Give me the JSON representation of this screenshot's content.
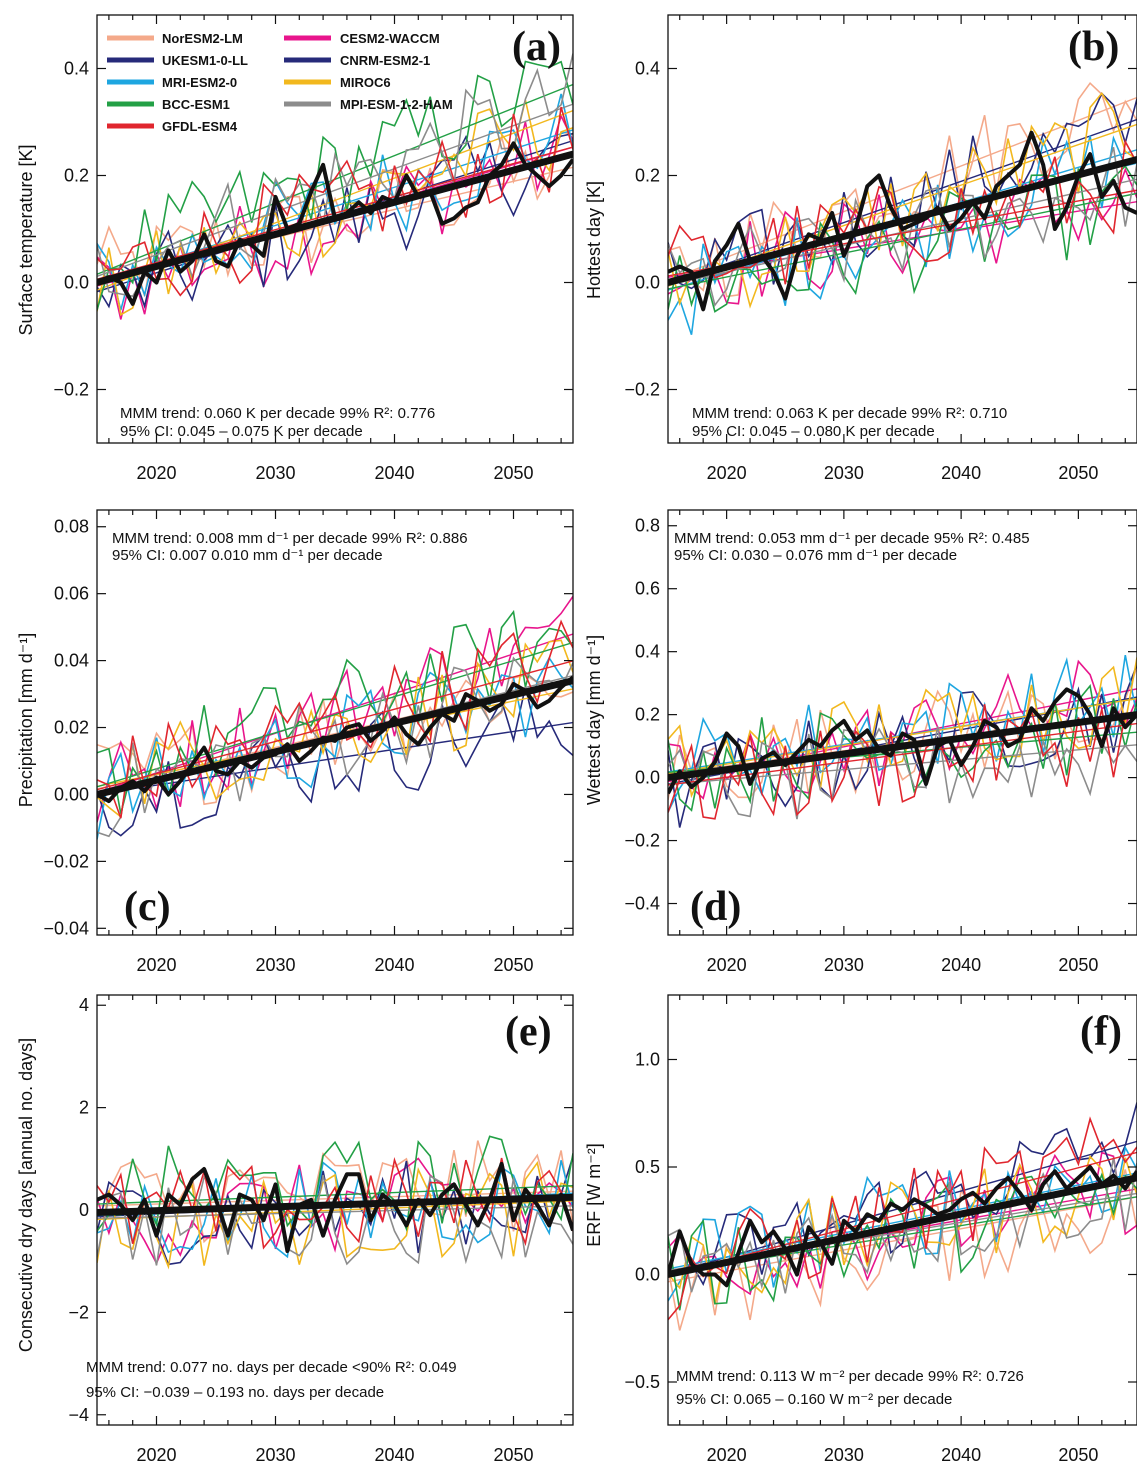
{
  "legend": {
    "entries": [
      {
        "name": "NorESM2-LM",
        "color": "#f4a98a"
      },
      {
        "name": "CESM2-WACCM",
        "color": "#e8158c"
      },
      {
        "name": "UKESM1-0-LL",
        "color": "#262a7a"
      },
      {
        "name": "CNRM-ESM2-1",
        "color": "#262a7a"
      },
      {
        "name": "MRI-ESM2-0",
        "color": "#1ea6e0"
      },
      {
        "name": "MIROC6",
        "color": "#f2b81e"
      },
      {
        "name": "BCC-ESM1",
        "color": "#23a046"
      },
      {
        "name": "MPI-ESM-1-2-HAM",
        "color": "#8c8c8c"
      },
      {
        "name": "GFDL-ESM4",
        "color": "#e0262e"
      }
    ]
  },
  "colors": {
    "mmm": "#111111",
    "models": [
      "#f4a98a",
      "#e8158c",
      "#262a7a",
      "#1ea6e0",
      "#f2b81e",
      "#23a046",
      "#8c8c8c",
      "#e0262e"
    ]
  },
  "chart_data": [
    {
      "type": "line",
      "panel": "(a)",
      "ylabel": "Surface temperature [K]",
      "xlim": [
        2015,
        2055
      ],
      "ylim": [
        -0.3,
        0.5
      ],
      "xticks": [
        "2020",
        "2030",
        "2040",
        "2050"
      ],
      "yticks": [
        "-0.2",
        "0.0",
        "0.2",
        "0.4"
      ],
      "ytick_values": [
        -0.2,
        0.0,
        0.2,
        0.4
      ],
      "mmm_trend": {
        "start": 0.0,
        "end": 0.24
      },
      "mmm_series": [
        0.0,
        0.01,
        0.0,
        -0.04,
        0.02,
        0.0,
        0.06,
        0.02,
        0.04,
        0.09,
        0.04,
        0.03,
        0.08,
        0.07,
        0.05,
        0.16,
        0.1,
        0.11,
        0.17,
        0.22,
        0.12,
        0.13,
        0.15,
        0.13,
        0.16,
        0.15,
        0.2,
        0.16,
        0.17,
        0.11,
        0.12,
        0.14,
        0.15,
        0.2,
        0.22,
        0.26,
        0.22,
        0.2,
        0.18,
        0.2,
        0.23
      ],
      "stats_line1": "MMM trend:  0.060 K per decade    99%   R²:  0.776",
      "stats_line2": "95% CI:         0.045  –  0.075 K per decade",
      "stats_position": "bottom"
    },
    {
      "type": "line",
      "panel": "(b)",
      "ylabel": "Hottest day [K]",
      "xlim": [
        2015,
        2055
      ],
      "ylim": [
        -0.3,
        0.5
      ],
      "xticks": [
        "2020",
        "2030",
        "2040",
        "2050"
      ],
      "yticks": [
        "-0.2",
        "0.0",
        "0.2",
        "0.4"
      ],
      "ytick_values": [
        -0.2,
        0.0,
        0.2,
        0.4
      ],
      "mmm_trend": {
        "start": 0.0,
        "end": 0.23
      },
      "mmm_series": [
        0.02,
        0.03,
        0.02,
        -0.05,
        0.04,
        0.07,
        0.11,
        0.04,
        0.05,
        0.02,
        -0.03,
        0.05,
        0.09,
        0.08,
        0.13,
        0.05,
        0.1,
        0.18,
        0.2,
        0.14,
        0.1,
        0.11,
        0.12,
        0.14,
        0.1,
        0.12,
        0.15,
        0.12,
        0.18,
        0.2,
        0.22,
        0.28,
        0.22,
        0.1,
        0.14,
        0.2,
        0.24,
        0.16,
        0.19,
        0.14,
        0.13
      ],
      "stats_line1": "MMM trend:  0.063 K per decade    99%   R²:  0.710",
      "stats_line2": "95% CI:         0.045  –  0.080 K per decade",
      "stats_position": "bottom"
    },
    {
      "type": "line",
      "panel": "(c)",
      "ylabel": "Precipitation [mm d⁻¹]",
      "xlim": [
        2015,
        2055
      ],
      "ylim": [
        -0.042,
        0.085
      ],
      "xticks": [
        "2020",
        "2030",
        "2040",
        "2050"
      ],
      "yticks": [
        "-0.04",
        "-0.02",
        "0.00",
        "0.02",
        "0.04",
        "0.06",
        "0.08"
      ],
      "ytick_values": [
        -0.04,
        -0.02,
        0.0,
        0.02,
        0.04,
        0.06,
        0.08
      ],
      "mmm_trend": {
        "start": 0.0,
        "end": 0.034
      },
      "mmm_series": [
        0.0,
        -0.002,
        0.002,
        0.004,
        0.001,
        0.005,
        0.0,
        0.004,
        0.009,
        0.014,
        0.007,
        0.006,
        0.01,
        0.008,
        0.011,
        0.012,
        0.015,
        0.01,
        0.013,
        0.017,
        0.016,
        0.02,
        0.021,
        0.016,
        0.019,
        0.023,
        0.018,
        0.015,
        0.02,
        0.024,
        0.022,
        0.03,
        0.028,
        0.025,
        0.027,
        0.033,
        0.031,
        0.026,
        0.028,
        0.032,
        0.035
      ],
      "stats_line1": "MMM trend:  0.008  mm d⁻¹ per decade  99%   R²:  0.886",
      "stats_line2": "95% CI:           0.007     0.010 mm d⁻¹ per decade",
      "stats_position": "top"
    },
    {
      "type": "line",
      "panel": "(d)",
      "ylabel": "Wettest day [mm d⁻¹]",
      "xlim": [
        2015,
        2055
      ],
      "ylim": [
        -0.5,
        0.85
      ],
      "xticks": [
        "2020",
        "2030",
        "2040",
        "2050"
      ],
      "yticks": [
        "-0.4",
        "-0.2",
        "0.0",
        "0.2",
        "0.4",
        "0.6",
        "0.8"
      ],
      "ytick_values": [
        -0.4,
        -0.2,
        0.0,
        0.2,
        0.4,
        0.6,
        0.8
      ],
      "mmm_trend": {
        "start": 0.0,
        "end": 0.2
      },
      "mmm_series": [
        -0.05,
        0.02,
        -0.03,
        0.0,
        0.05,
        0.14,
        0.1,
        -0.02,
        0.06,
        0.08,
        0.04,
        0.08,
        0.12,
        0.1,
        0.15,
        0.18,
        0.12,
        0.15,
        0.09,
        0.07,
        0.14,
        0.12,
        -0.02,
        0.1,
        0.12,
        0.04,
        0.1,
        0.18,
        0.16,
        0.1,
        0.12,
        0.22,
        0.18,
        0.24,
        0.28,
        0.26,
        0.2,
        0.1,
        0.22,
        0.16,
        0.2
      ],
      "stats_line1": "MMM trend:  0.053  mm d⁻¹ per decade  95%   R²:  0.485",
      "stats_line2": "95% CI:            0.030  –  0.076 mm d⁻¹ per decade",
      "stats_position": "top"
    },
    {
      "type": "line",
      "panel": "(e)",
      "ylabel": "Consecutive dry days [annual no. days]",
      "xlim": [
        2015,
        2055
      ],
      "ylim": [
        -4.2,
        4.2
      ],
      "xticks": [
        "2020",
        "2030",
        "2040",
        "2050"
      ],
      "yticks": [
        "-4",
        "-2",
        "0",
        "2",
        "4"
      ],
      "ytick_values": [
        -4,
        -2,
        0,
        2,
        4
      ],
      "mmm_trend": {
        "start": -0.05,
        "end": 0.25
      },
      "mmm_series": [
        0.2,
        0.3,
        0.1,
        -0.2,
        0.2,
        -0.5,
        0.3,
        0.1,
        0.6,
        0.8,
        0.2,
        -0.5,
        0.3,
        0.2,
        -0.2,
        0.5,
        -0.8,
        0.1,
        0.2,
        -0.5,
        0.2,
        0.7,
        0.7,
        -0.2,
        0.3,
        0.1,
        -0.3,
        0.2,
        -0.1,
        0.3,
        0.5,
        0.1,
        -0.3,
        0.2,
        0.9,
        -0.2,
        0.4,
        0.1,
        -0.3,
        0.3,
        -0.4
      ],
      "stats_line1": "MMM trend:  0.077  no. days per decade <90%    R²:  0.049",
      "stats_line2": "95% CI:       −0.039  –  0.193  no. days per decade",
      "stats_position": "bottom"
    },
    {
      "type": "line",
      "panel": "(f)",
      "ylabel": "ERF [W m⁻²]",
      "xlim": [
        2015,
        2055
      ],
      "ylim": [
        -0.7,
        1.3
      ],
      "xticks": [
        "2020",
        "2030",
        "2040",
        "2050"
      ],
      "yticks": [
        "-0.5",
        "0.0",
        "0.5",
        "1.0"
      ],
      "ytick_values": [
        -0.5,
        0.0,
        0.5,
        1.0
      ],
      "mmm_trend": {
        "start": 0.0,
        "end": 0.45
      },
      "mmm_series": [
        0.0,
        0.2,
        0.05,
        0.0,
        0.0,
        -0.05,
        0.1,
        0.25,
        0.15,
        0.2,
        0.12,
        0.0,
        0.22,
        0.15,
        0.05,
        0.25,
        0.2,
        0.28,
        0.25,
        0.33,
        0.3,
        0.35,
        0.32,
        0.28,
        0.3,
        0.35,
        0.38,
        0.33,
        0.4,
        0.45,
        0.38,
        0.3,
        0.42,
        0.48,
        0.4,
        0.45,
        0.5,
        0.42,
        0.46,
        0.4,
        0.48
      ],
      "stats_line1": "MMM trend:    0.113 W m⁻² per decade   99%   R²:   0.726",
      "stats_line2": "95% CI:           0.065  –  0.160 W m⁻² per decade",
      "stats_position": "bottom"
    }
  ]
}
